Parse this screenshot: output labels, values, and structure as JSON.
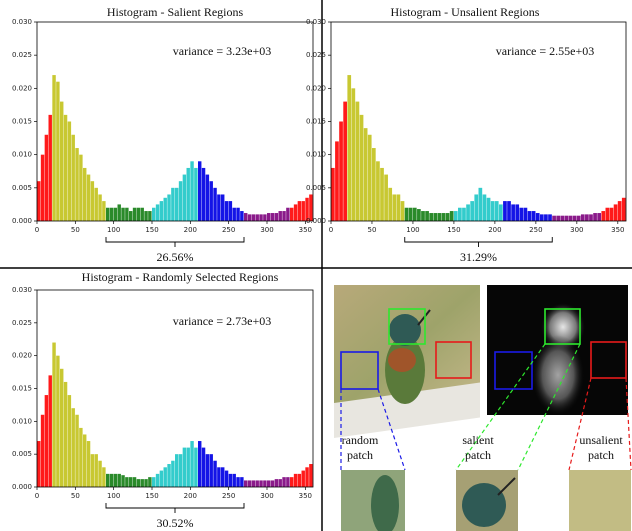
{
  "chart_data": [
    {
      "type": "histogram",
      "title": "Histogram - Salient Regions",
      "annotation": "variance = 3.23e+03",
      "bracket": [
        90,
        270
      ],
      "bracket_label": "26.56%",
      "bins": [
        0,
        5,
        10,
        15,
        20,
        25,
        30,
        35,
        40,
        45,
        50,
        55,
        60,
        65,
        70,
        75,
        80,
        85,
        90,
        95,
        100,
        105,
        110,
        115,
        120,
        125,
        130,
        135,
        140,
        145,
        150,
        155,
        160,
        165,
        170,
        175,
        180,
        185,
        190,
        195,
        200,
        205,
        210,
        215,
        220,
        225,
        230,
        235,
        240,
        245,
        250,
        255,
        260,
        265,
        270,
        275,
        280,
        285,
        290,
        295,
        300,
        305,
        310,
        315,
        320,
        325,
        330,
        335,
        340,
        345,
        350,
        355,
        360
      ],
      "values": [
        0.006,
        0.01,
        0.013,
        0.016,
        0.022,
        0.021,
        0.018,
        0.016,
        0.015,
        0.013,
        0.011,
        0.01,
        0.008,
        0.007,
        0.006,
        0.005,
        0.004,
        0.003,
        0.002,
        0.002,
        0.002,
        0.0025,
        0.002,
        0.002,
        0.0015,
        0.002,
        0.002,
        0.002,
        0.0015,
        0.0015,
        0.002,
        0.0025,
        0.003,
        0.0035,
        0.004,
        0.005,
        0.005,
        0.006,
        0.007,
        0.008,
        0.009,
        0.008,
        0.009,
        0.008,
        0.007,
        0.006,
        0.005,
        0.004,
        0.004,
        0.003,
        0.003,
        0.002,
        0.002,
        0.0015,
        0.0012,
        0.001,
        0.001,
        0.001,
        0.001,
        0.001,
        0.0012,
        0.0012,
        0.0012,
        0.0015,
        0.0015,
        0.002,
        0.002,
        0.0025,
        0.003,
        0.003,
        0.0035,
        0.004
      ],
      "color_bands": [
        {
          "end": 20,
          "color": "#ff1a1a"
        },
        {
          "end": 90,
          "color": "#c8c832"
        },
        {
          "end": 150,
          "color": "#2a8a2a"
        },
        {
          "end": 210,
          "color": "#33cccc"
        },
        {
          "end": 270,
          "color": "#1414e6"
        },
        {
          "end": 330,
          "color": "#8a1a8a"
        },
        {
          "end": 360,
          "color": "#ff1a1a"
        }
      ],
      "xlim": [
        0,
        360
      ],
      "xticks": [
        0,
        50,
        100,
        150,
        200,
        250,
        300,
        350
      ],
      "ylim": [
        0,
        0.03
      ],
      "yticks": [
        {
          "value": 0,
          "label": "0.000"
        },
        {
          "value": 0.005,
          "label": "0.005"
        },
        {
          "value": 0.01,
          "label": "0.010"
        },
        {
          "value": 0.015,
          "label": "0.015"
        },
        {
          "value": 0.02,
          "label": "0.020"
        },
        {
          "value": 0.025,
          "label": "0.025"
        },
        {
          "value": 0.03,
          "label": "0.030"
        }
      ]
    },
    {
      "type": "histogram",
      "title": "Histogram - Unsalient Regions",
      "annotation": "variance = 2.55e+03",
      "bracket": [
        90,
        270
      ],
      "bracket_label": "31.29%",
      "bins": [
        0,
        5,
        10,
        15,
        20,
        25,
        30,
        35,
        40,
        45,
        50,
        55,
        60,
        65,
        70,
        75,
        80,
        85,
        90,
        95,
        100,
        105,
        110,
        115,
        120,
        125,
        130,
        135,
        140,
        145,
        150,
        155,
        160,
        165,
        170,
        175,
        180,
        185,
        190,
        195,
        200,
        205,
        210,
        215,
        220,
        225,
        230,
        235,
        240,
        245,
        250,
        255,
        260,
        265,
        270,
        275,
        280,
        285,
        290,
        295,
        300,
        305,
        310,
        315,
        320,
        325,
        330,
        335,
        340,
        345,
        350,
        355,
        360
      ],
      "values": [
        0.008,
        0.012,
        0.015,
        0.018,
        0.022,
        0.02,
        0.018,
        0.016,
        0.014,
        0.013,
        0.011,
        0.009,
        0.008,
        0.007,
        0.005,
        0.004,
        0.004,
        0.003,
        0.002,
        0.002,
        0.002,
        0.0018,
        0.0015,
        0.0015,
        0.0012,
        0.0012,
        0.0012,
        0.0012,
        0.0012,
        0.0015,
        0.0015,
        0.002,
        0.002,
        0.0025,
        0.003,
        0.004,
        0.005,
        0.004,
        0.0035,
        0.003,
        0.003,
        0.0025,
        0.003,
        0.003,
        0.0025,
        0.0025,
        0.002,
        0.002,
        0.0015,
        0.0015,
        0.0012,
        0.001,
        0.001,
        0.001,
        0.0008,
        0.0008,
        0.0008,
        0.0008,
        0.0008,
        0.0008,
        0.0008,
        0.001,
        0.001,
        0.001,
        0.0012,
        0.0012,
        0.0015,
        0.002,
        0.002,
        0.0025,
        0.003,
        0.0035
      ],
      "color_bands": [
        {
          "end": 20,
          "color": "#ff1a1a"
        },
        {
          "end": 90,
          "color": "#c8c832"
        },
        {
          "end": 150,
          "color": "#2a8a2a"
        },
        {
          "end": 210,
          "color": "#33cccc"
        },
        {
          "end": 270,
          "color": "#1414e6"
        },
        {
          "end": 330,
          "color": "#8a1a8a"
        },
        {
          "end": 360,
          "color": "#ff1a1a"
        }
      ],
      "xlim": [
        0,
        360
      ],
      "xticks": [
        0,
        50,
        100,
        150,
        200,
        250,
        300,
        350
      ],
      "ylim": [
        0,
        0.03
      ],
      "yticks": [
        {
          "value": 0,
          "label": "0.000"
        },
        {
          "value": 0.005,
          "label": "0.005"
        },
        {
          "value": 0.01,
          "label": "0.010"
        },
        {
          "value": 0.015,
          "label": "0.015"
        },
        {
          "value": 0.02,
          "label": "0.020"
        },
        {
          "value": 0.025,
          "label": "0.025"
        },
        {
          "value": 0.03,
          "label": "0.030"
        }
      ]
    },
    {
      "type": "histogram",
      "title": "Histogram - Randomly Selected Regions",
      "annotation": "variance = 2.73e+03",
      "bracket": [
        90,
        270
      ],
      "bracket_label": "30.52%",
      "bins": [
        0,
        5,
        10,
        15,
        20,
        25,
        30,
        35,
        40,
        45,
        50,
        55,
        60,
        65,
        70,
        75,
        80,
        85,
        90,
        95,
        100,
        105,
        110,
        115,
        120,
        125,
        130,
        135,
        140,
        145,
        150,
        155,
        160,
        165,
        170,
        175,
        180,
        185,
        190,
        195,
        200,
        205,
        210,
        215,
        220,
        225,
        230,
        235,
        240,
        245,
        250,
        255,
        260,
        265,
        270,
        275,
        280,
        285,
        290,
        295,
        300,
        305,
        310,
        315,
        320,
        325,
        330,
        335,
        340,
        345,
        350,
        355,
        360
      ],
      "values": [
        0.007,
        0.011,
        0.014,
        0.017,
        0.022,
        0.02,
        0.018,
        0.016,
        0.014,
        0.012,
        0.011,
        0.009,
        0.008,
        0.007,
        0.005,
        0.005,
        0.004,
        0.003,
        0.002,
        0.002,
        0.002,
        0.002,
        0.0018,
        0.0015,
        0.0015,
        0.0015,
        0.0012,
        0.0012,
        0.0012,
        0.0015,
        0.0015,
        0.002,
        0.0025,
        0.003,
        0.0035,
        0.004,
        0.005,
        0.005,
        0.006,
        0.006,
        0.007,
        0.006,
        0.007,
        0.006,
        0.005,
        0.005,
        0.004,
        0.003,
        0.003,
        0.0025,
        0.002,
        0.002,
        0.0015,
        0.0015,
        0.001,
        0.001,
        0.001,
        0.001,
        0.001,
        0.001,
        0.001,
        0.001,
        0.0012,
        0.0012,
        0.0015,
        0.0015,
        0.0015,
        0.002,
        0.002,
        0.0025,
        0.003,
        0.0035
      ],
      "color_bands": [
        {
          "end": 20,
          "color": "#ff1a1a"
        },
        {
          "end": 90,
          "color": "#c8c832"
        },
        {
          "end": 150,
          "color": "#2a8a2a"
        },
        {
          "end": 210,
          "color": "#33cccc"
        },
        {
          "end": 270,
          "color": "#1414e6"
        },
        {
          "end": 330,
          "color": "#8a1a8a"
        },
        {
          "end": 360,
          "color": "#ff1a1a"
        }
      ],
      "xlim": [
        0,
        360
      ],
      "xticks": [
        0,
        50,
        100,
        150,
        200,
        250,
        300,
        350
      ],
      "ylim": [
        0,
        0.03
      ],
      "yticks": [
        {
          "value": 0,
          "label": "0.000"
        },
        {
          "value": 0.005,
          "label": "0.005"
        },
        {
          "value": 0.01,
          "label": "0.010"
        },
        {
          "value": 0.015,
          "label": "0.015"
        },
        {
          "value": 0.02,
          "label": "0.020"
        },
        {
          "value": 0.025,
          "label": "0.025"
        },
        {
          "value": 0.03,
          "label": "0.030"
        }
      ]
    }
  ],
  "patches": [
    [
      "random",
      "patch"
    ],
    [
      "salient",
      "patch"
    ],
    [
      "unsalient",
      "patch"
    ]
  ]
}
